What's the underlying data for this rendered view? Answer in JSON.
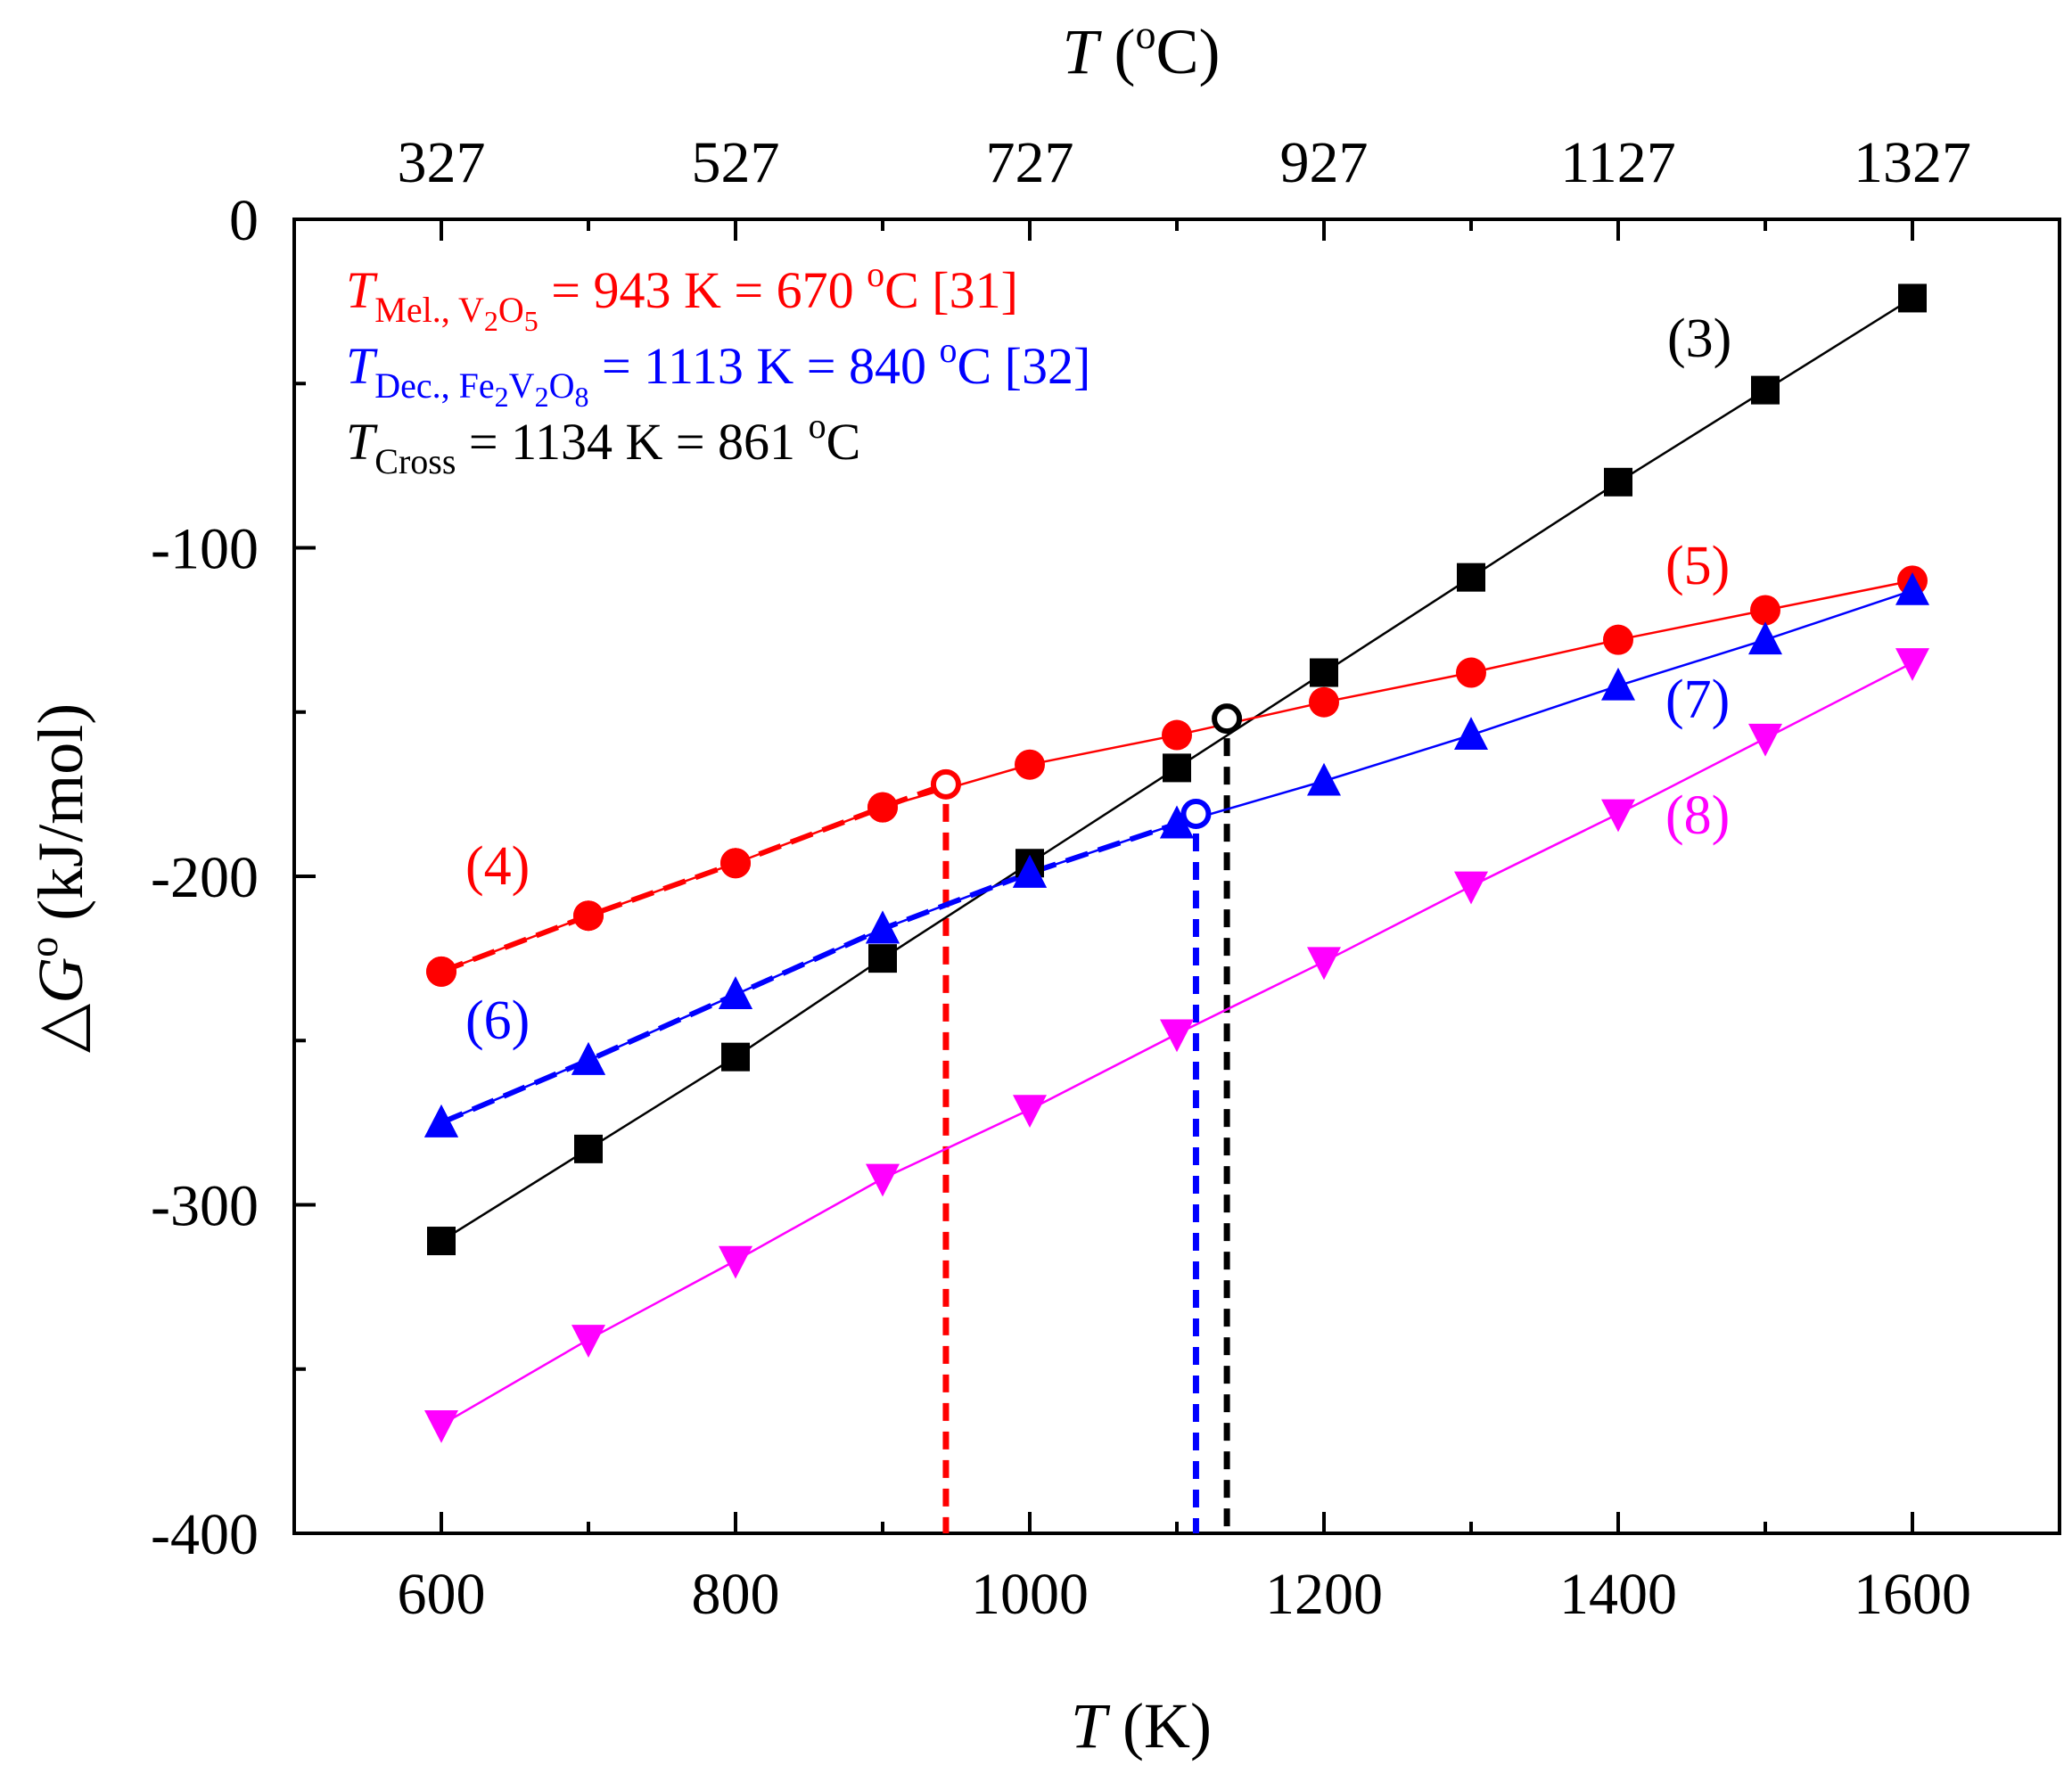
{
  "chart_data": {
    "type": "line",
    "xlabel": {
      "italic": "T",
      "rest": " (K)"
    },
    "ylabel": {
      "pre": "△",
      "italic": "G",
      "sup": "o",
      "rest": " (kJ/mol)"
    },
    "x2label": {
      "italic": "T",
      "rest": " (",
      "sup": "o",
      "unit": "C)"
    },
    "xlim": [
      500,
      1700
    ],
    "ylim": [
      -400,
      0
    ],
    "x_ticks": [
      {
        "value": 600,
        "label": "600"
      },
      {
        "value": 800,
        "label": "800"
      },
      {
        "value": 1000,
        "label": "1000"
      },
      {
        "value": 1200,
        "label": "1200"
      },
      {
        "value": 1400,
        "label": "1400"
      },
      {
        "value": 1600,
        "label": "1600"
      }
    ],
    "x2_ticks": [
      {
        "value": 600,
        "label": "327"
      },
      {
        "value": 800,
        "label": "527"
      },
      {
        "value": 1000,
        "label": "727"
      },
      {
        "value": 1200,
        "label": "927"
      },
      {
        "value": 1400,
        "label": "1127"
      },
      {
        "value": 1600,
        "label": "1327"
      }
    ],
    "y_ticks": [
      {
        "value": 0,
        "label": "0"
      },
      {
        "value": -100,
        "label": "-100"
      },
      {
        "value": -200,
        "label": "-200"
      },
      {
        "value": -300,
        "label": "-300"
      },
      {
        "value": -400,
        "label": "-400"
      }
    ],
    "y_minor_ticks": [
      -50,
      -150,
      -250,
      -350
    ],
    "x_minor_ticks": [
      700,
      900,
      1100,
      1300,
      1500
    ],
    "series": [
      {
        "id": "s3",
        "label": "(3)",
        "color": "#000000",
        "marker": "square",
        "x": [
          600,
          700,
          800,
          900,
          1000,
          1100,
          1200,
          1300,
          1400,
          1500,
          1600
        ],
        "y": [
          -311,
          -283,
          -255,
          -225,
          -196,
          -167,
          -138,
          -109,
          -80,
          -52,
          -24
        ]
      },
      {
        "id": "s4",
        "label": "(4)",
        "color": "#ff0000",
        "marker": "circle",
        "dashed": true,
        "x": [
          600,
          700,
          800,
          900,
          943
        ],
        "y": [
          -229,
          -212,
          -196,
          -179,
          -172
        ]
      },
      {
        "id": "s5",
        "label": "(5)",
        "color": "#ff0000",
        "marker": "circle",
        "x": [
          600,
          700,
          800,
          900,
          1000,
          1100,
          1200,
          1300,
          1400,
          1500,
          1600
        ],
        "y": [
          -229,
          -212,
          -196,
          -179,
          -166,
          -157,
          -147,
          -138,
          -128,
          -119,
          -110
        ]
      },
      {
        "id": "s6",
        "label": "(6)",
        "color": "#0000ff",
        "marker": "triangle-up",
        "dashed": true,
        "x": [
          600,
          700,
          800,
          900,
          1000,
          1100,
          1113
        ],
        "y": [
          -275,
          -256,
          -236,
          -216,
          -199,
          -184,
          -181
        ]
      },
      {
        "id": "s7",
        "label": "(7)",
        "color": "#0000ff",
        "marker": "triangle-up",
        "x": [
          600,
          700,
          800,
          900,
          1000,
          1100,
          1200,
          1300,
          1400,
          1500,
          1600
        ],
        "y": [
          -275,
          -256,
          -236,
          -216,
          -199,
          -184,
          -171,
          -157,
          -142,
          -128,
          -113
        ]
      },
      {
        "id": "s8",
        "label": "(8)",
        "color": "#ff00ff",
        "marker": "triangle-down",
        "x": [
          600,
          700,
          800,
          900,
          1000,
          1100,
          1200,
          1300,
          1400,
          1500,
          1600
        ],
        "y": [
          -367,
          -341,
          -317,
          -292,
          -271,
          -248,
          -226,
          -203,
          -181,
          -158,
          -135
        ]
      }
    ],
    "transitions": [
      {
        "id": "melting",
        "x": 943,
        "y": -172,
        "color": "#ff0000"
      },
      {
        "id": "decomposition",
        "x": 1113,
        "y": -181,
        "color": "#0000ff"
      },
      {
        "id": "cross",
        "x": 1134,
        "y": -152,
        "color": "#000000"
      }
    ],
    "annotations": [
      {
        "id": "mel",
        "color": "#ff0000",
        "T": "T",
        "sub": "Mel., V",
        "sub_parts": [
          "2",
          "O",
          "5"
        ],
        "text": " = 943 K = 670 ",
        "sup": "o",
        "tail": "C [31]"
      },
      {
        "id": "dec",
        "color": "#0000ff",
        "T": "T",
        "sub": "Dec., Fe",
        "sub_parts": [
          "2",
          "V",
          "2",
          "O",
          "8"
        ],
        "text": " = 1113 K = 840 ",
        "sup": "o",
        "tail": "C [32]"
      },
      {
        "id": "cross",
        "color": "#000000",
        "T": "T",
        "sub": "Cross",
        "sub_parts": [],
        "text": " = 1134 K = 861 ",
        "sup": "o",
        "tail": "C"
      }
    ]
  }
}
